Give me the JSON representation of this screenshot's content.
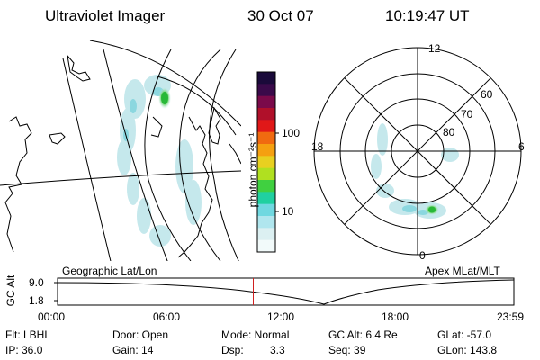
{
  "header": {
    "instrument": "Ultraviolet Imager",
    "date": "30 Oct 07",
    "time": "10:19:47 UT"
  },
  "colorbar": {
    "label": "photon cm⁻²s⁻¹",
    "ticks": [
      "100",
      "10"
    ],
    "colors": [
      "#1a0a3a",
      "#3a0a4a",
      "#7a0a4a",
      "#b0102a",
      "#e01818",
      "#f06a10",
      "#f5a010",
      "#e8d020",
      "#b0e020",
      "#40d040",
      "#20d0a0",
      "#70d8e0",
      "#b0e6ee",
      "#dcf0f2",
      "#f2fafa"
    ]
  },
  "left_panel": {
    "caption": "Geographic Lat/Lon"
  },
  "right_panel": {
    "caption": "Apex MLat/MLT",
    "lat_labels": [
      "80",
      "70",
      "60"
    ],
    "mlt_labels": [
      "12",
      "18",
      "6",
      "0"
    ]
  },
  "timeline": {
    "ylabel": "GC Alt",
    "yticks": [
      "9.0",
      "1.8"
    ],
    "xticks": [
      "00:00",
      "06:00",
      "12:00",
      "18:00",
      "23:59"
    ],
    "current_time_fraction": 0.429
  },
  "status": {
    "row1": [
      "Flt: LBHL",
      "Door: Open",
      "Mode: Normal",
      "GC Alt: 6.4 Re",
      "GLat: -57.0"
    ],
    "row2": [
      "IP: 36.0",
      "Gain: 14",
      "Dsp:",
      "3.3",
      "Seq: 39",
      "GLon: 143.8"
    ]
  }
}
